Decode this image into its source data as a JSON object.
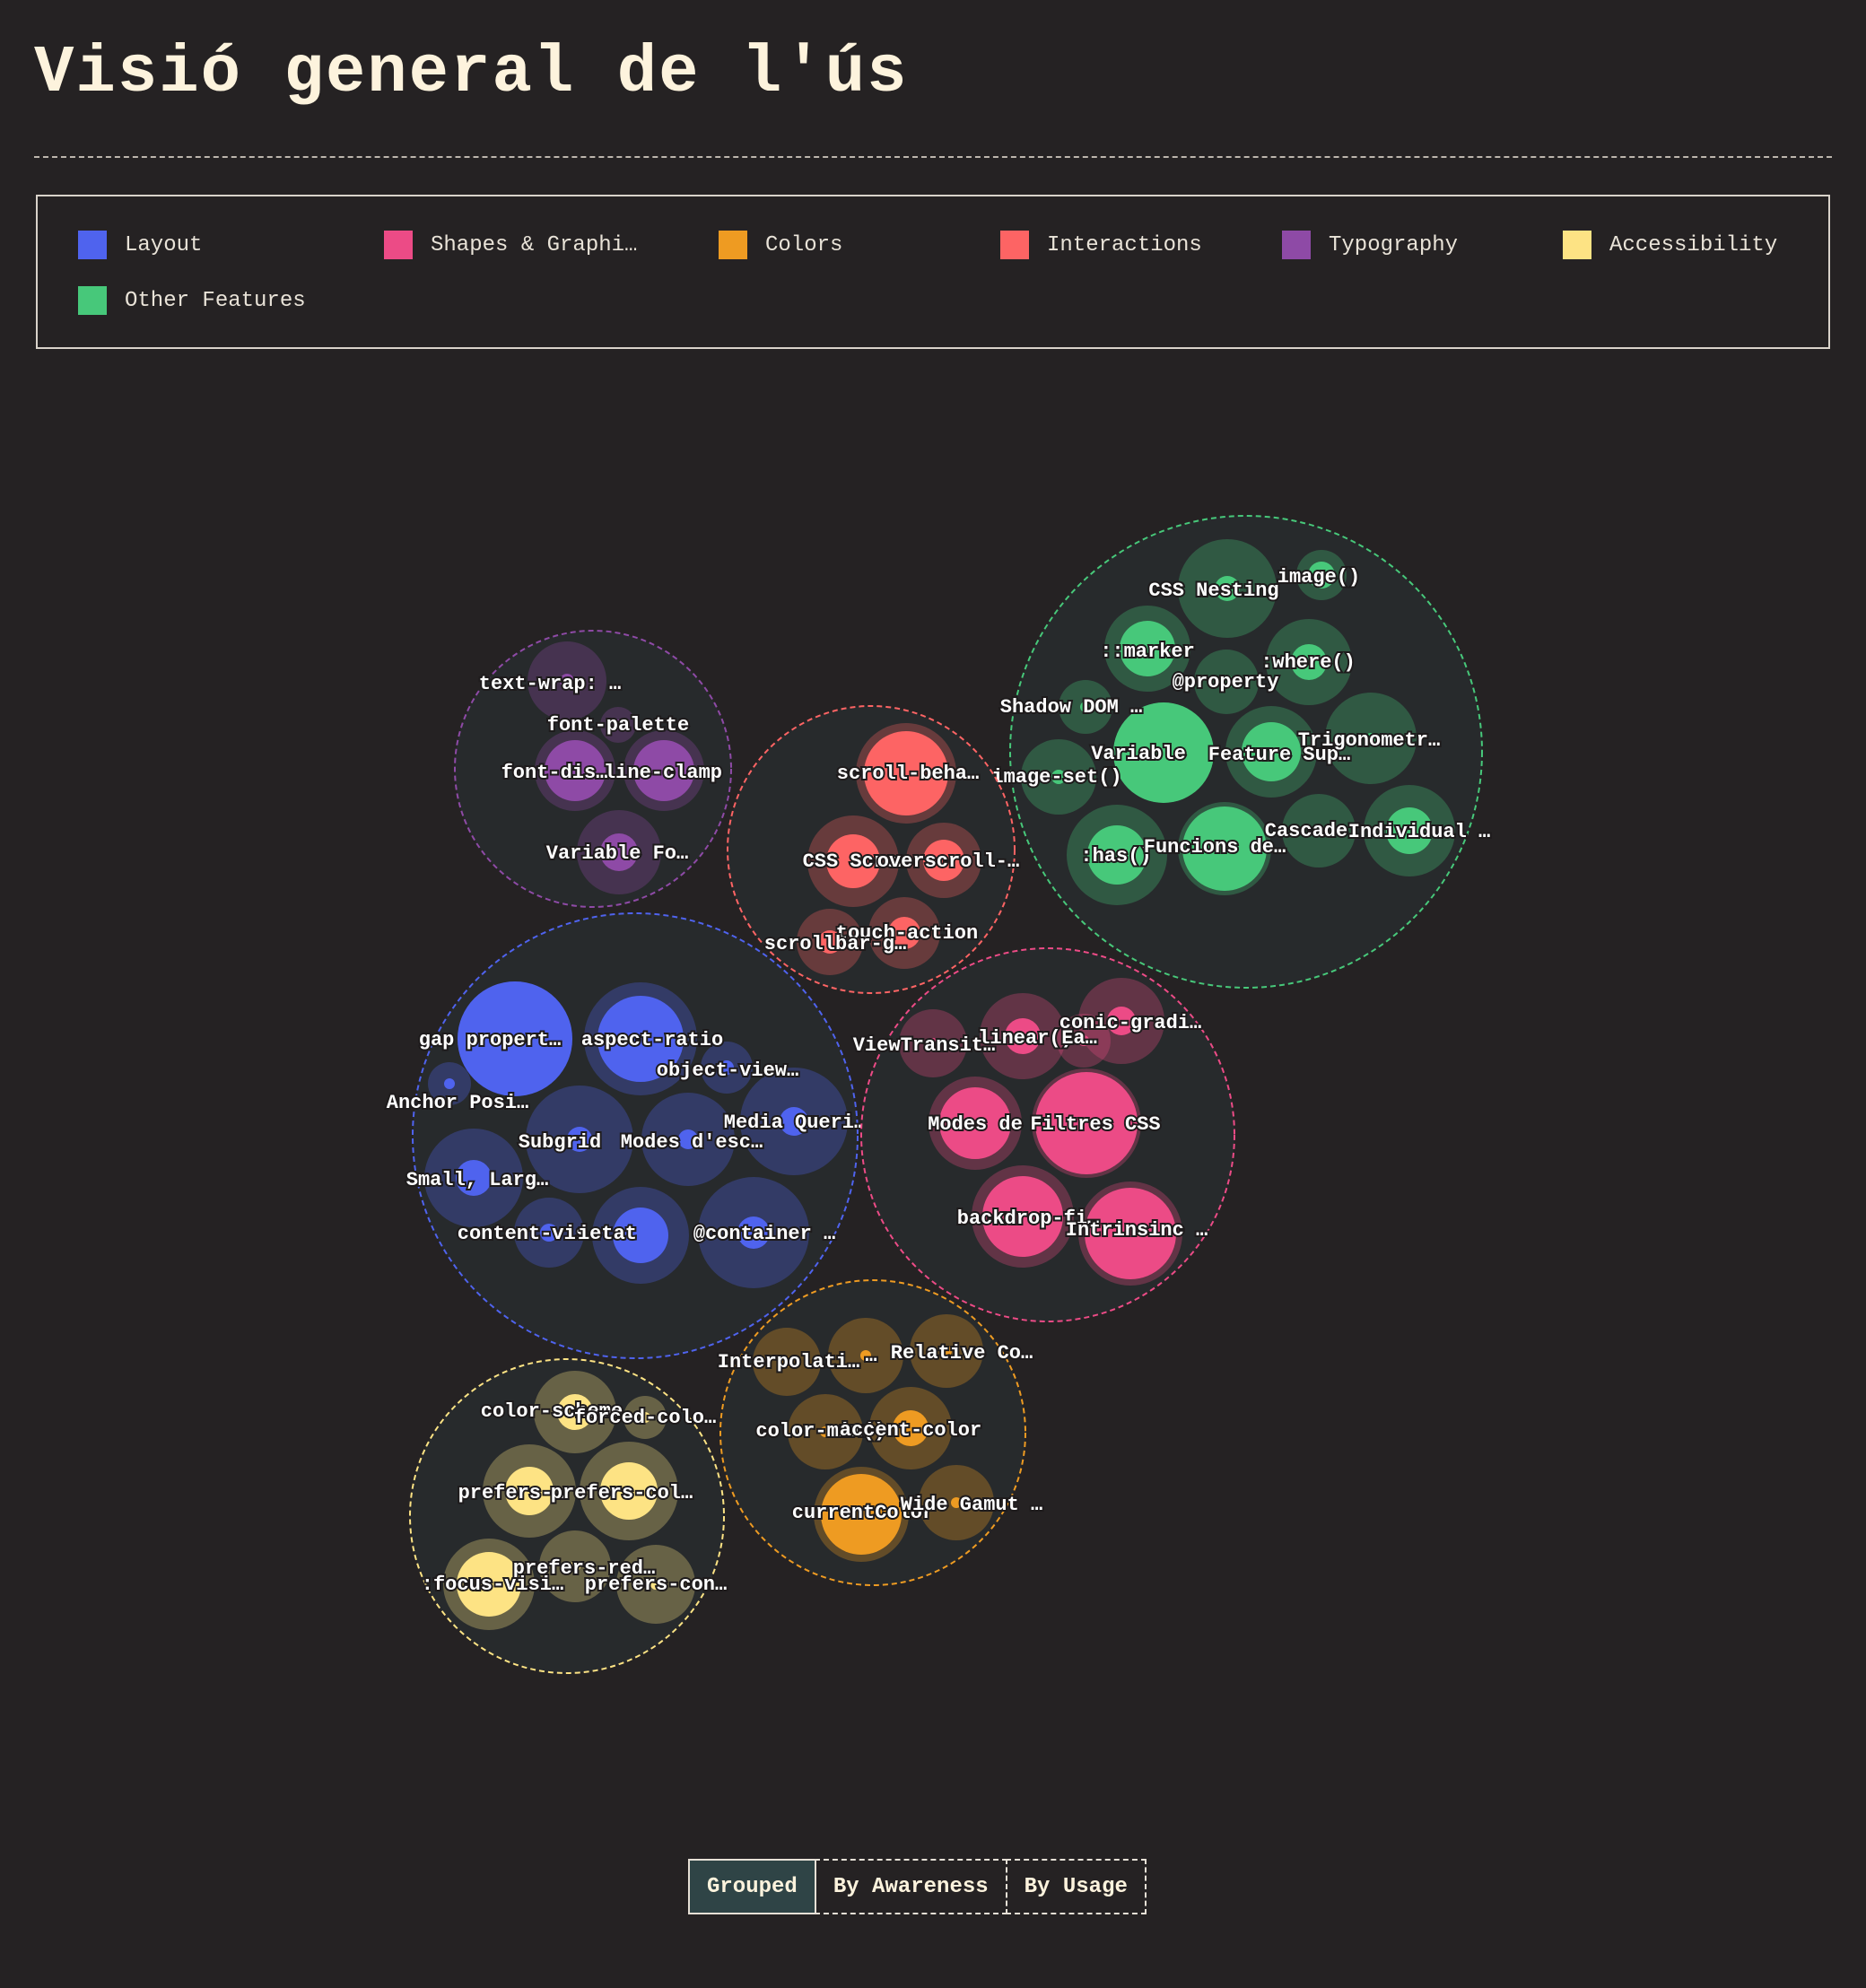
{
  "page": {
    "title": "Visió general de l'ús"
  },
  "legend": [
    {
      "label": "Layout",
      "color": "#4f63ee"
    },
    {
      "label": "Shapes & Graphi…",
      "color": "#ec4b86"
    },
    {
      "label": "Colors",
      "color": "#ee9b22"
    },
    {
      "label": "Interactions",
      "color": "#fd6464"
    },
    {
      "label": "Typography",
      "color": "#8e4aa6"
    },
    {
      "label": "Accessibility",
      "color": "#fde384"
    },
    {
      "label": "Other Features",
      "color": "#47c87a"
    }
  ],
  "view_toggle": {
    "buttons": [
      {
        "label": "Grouped",
        "active": true
      },
      {
        "label": "By Awareness",
        "active": false
      },
      {
        "label": "By Usage",
        "active": false
      }
    ]
  },
  "chart_data": {
    "type": "bubble-pack",
    "groups": [
      {
        "name": "Other Features",
        "color": "#47c87a",
        "features": [
          {
            "label": "CSS Nesting",
            "awareness": 55,
            "usage": 14
          },
          {
            "label": "image()",
            "awareness": 28,
            "usage": 15
          },
          {
            "label": "::marker",
            "awareness": 48,
            "usage": 31
          },
          {
            "label": ":where()",
            "awareness": 48,
            "usage": 20
          },
          {
            "label": "@property",
            "awareness": 36,
            "usage": 8
          },
          {
            "label": "Shadow DOM …",
            "awareness": 30,
            "usage": 6
          },
          {
            "label": "Variable",
            "awareness": 56,
            "usage": 56
          },
          {
            "label": "Feature Sup…",
            "awareness": 51,
            "usage": 33
          },
          {
            "label": "Trigonometr…",
            "awareness": 51,
            "usage": 6
          },
          {
            "label": "image-set()",
            "awareness": 42,
            "usage": 8
          },
          {
            "label": ":has()",
            "awareness": 56,
            "usage": 33
          },
          {
            "label": "Funcions de…",
            "awareness": 52,
            "usage": 47
          },
          {
            "label": "Cascade",
            "awareness": 41,
            "usage": 6
          },
          {
            "label": "Individual …",
            "awareness": 51,
            "usage": 26
          }
        ]
      },
      {
        "name": "Typography",
        "color": "#8e4aa6",
        "features": [
          {
            "label": "text-wrap: …",
            "awareness": 44,
            "usage": 8
          },
          {
            "label": "font-palette",
            "awareness": 20,
            "usage": 6
          },
          {
            "label": "font-dis…",
            "awareness": 45,
            "usage": 34
          },
          {
            "label": "line-clamp",
            "awareness": 45,
            "usage": 34
          },
          {
            "label": "Variable Fo…",
            "awareness": 47,
            "usage": 21
          }
        ]
      },
      {
        "name": "Interactions",
        "color": "#fd6464",
        "features": [
          {
            "label": "scroll-beha…",
            "awareness": 56,
            "usage": 47
          },
          {
            "label": "CSS Scro…",
            "awareness": 51,
            "usage": 30
          },
          {
            "label": "overscroll-…",
            "awareness": 42,
            "usage": 23
          },
          {
            "label": "touch-action",
            "awareness": 40,
            "usage": 18
          },
          {
            "label": "scrollbar-g…",
            "awareness": 37,
            "usage": 13
          }
        ]
      },
      {
        "name": "Layout",
        "color": "#4f63ee",
        "features": [
          {
            "label": "gap propert…",
            "awareness": 64,
            "usage": 64
          },
          {
            "label": "aspect-ratio",
            "awareness": 63,
            "usage": 48
          },
          {
            "label": "object-view…",
            "awareness": 29,
            "usage": 8
          },
          {
            "label": "Anchor Posi…",
            "awareness": 24,
            "usage": 6
          },
          {
            "label": "Media Queri…",
            "awareness": 60,
            "usage": 16
          },
          {
            "label": "Subgrid",
            "awareness": 60,
            "usage": 14
          },
          {
            "label": "Modes d'esc…",
            "awareness": 52,
            "usage": 11
          },
          {
            "label": "Small, Larg…",
            "awareness": 55,
            "usage": 20
          },
          {
            "label": "content-vis…",
            "awareness": 39,
            "usage": 10
          },
          {
            "label": "ietat",
            "awareness": 54,
            "usage": 31
          },
          {
            "label": "@container …",
            "awareness": 62,
            "usage": 18
          }
        ]
      },
      {
        "name": "Shapes & Graphics",
        "color": "#ec4b86",
        "features": [
          {
            "label": "ViewTransit…",
            "awareness": 38,
            "usage": 6
          },
          {
            "label": "linear()",
            "awareness": 48,
            "usage": 20
          },
          {
            "label": "conic-gradi…",
            "awareness": 48,
            "usage": 16
          },
          {
            "label": "Ea…",
            "awareness": 30,
            "usage": 6
          },
          {
            "label": "Modes de",
            "awareness": 52,
            "usage": 40
          },
          {
            "label": "Filtres CSS",
            "awareness": 61,
            "usage": 57
          },
          {
            "label": "backdrop-fi…",
            "awareness": 57,
            "usage": 45
          },
          {
            "label": "Intrinsinc …",
            "awareness": 58,
            "usage": 51
          }
        ]
      },
      {
        "name": "Accessibility",
        "color": "#fde384",
        "features": [
          {
            "label": "color-scheme",
            "awareness": 46,
            "usage": 20
          },
          {
            "label": "forced-colo…",
            "awareness": 24,
            "usage": 6
          },
          {
            "label": "prefers-…",
            "awareness": 52,
            "usage": 27
          },
          {
            "label": "prefers-col…",
            "awareness": 55,
            "usage": 32
          },
          {
            "label": "prefers-red…",
            "awareness": 40,
            "usage": 6
          },
          {
            "label": ":focus-visi…",
            "awareness": 51,
            "usage": 36
          },
          {
            "label": "prefers-con…",
            "awareness": 44,
            "usage": 6
          }
        ]
      },
      {
        "name": "Colors",
        "color": "#ee9b22",
        "features": [
          {
            "label": "Interpolati…",
            "awareness": 38,
            "usage": 6
          },
          {
            "label": "…",
            "awareness": 42,
            "usage": 6
          },
          {
            "label": "Relative Co…",
            "awareness": 41,
            "usage": 6
          },
          {
            "label": "color-mix()",
            "awareness": 42,
            "usage": 6
          },
          {
            "label": "accent-color",
            "awareness": 46,
            "usage": 20
          },
          {
            "label": "currentColor",
            "awareness": 53,
            "usage": 45
          },
          {
            "label": "Wide Gamut …",
            "awareness": 42,
            "usage": 6
          }
        ]
      }
    ]
  }
}
